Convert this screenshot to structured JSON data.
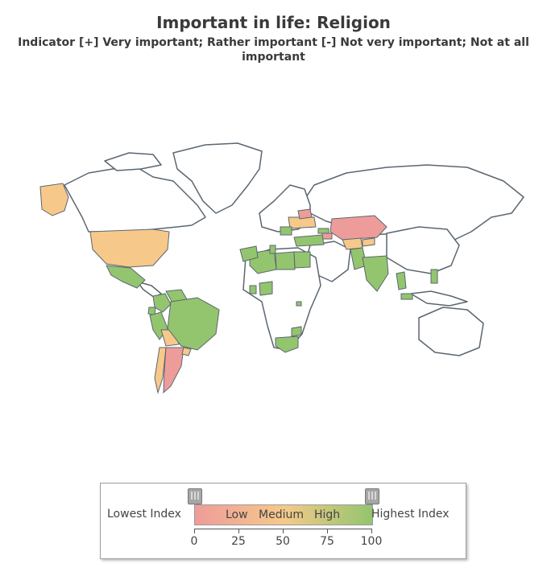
{
  "title": "Important in life: Religion",
  "subtitle": "Indicator [+] Very important; Rather important [-] Not very important; Not at all important",
  "colors": {
    "low": "#ee9c9a",
    "medium": "#f6c98a",
    "high": "#93c56e",
    "no_data": "#ffffff",
    "border": "#5b6670"
  },
  "map": {
    "type": "choropleth",
    "regions": [
      {
        "name": "Alaska",
        "level": "medium"
      },
      {
        "name": "United States",
        "level": "medium"
      },
      {
        "name": "Mexico",
        "level": "high"
      },
      {
        "name": "Colombia",
        "level": "high"
      },
      {
        "name": "Venezuela",
        "level": "high"
      },
      {
        "name": "Ecuador",
        "level": "high"
      },
      {
        "name": "Peru",
        "level": "high"
      },
      {
        "name": "Bolivia",
        "level": "medium"
      },
      {
        "name": "Brazil",
        "level": "high"
      },
      {
        "name": "Chile",
        "level": "medium"
      },
      {
        "name": "Argentina",
        "level": "low"
      },
      {
        "name": "Uruguay",
        "level": "medium"
      },
      {
        "name": "Ukraine",
        "level": "medium"
      },
      {
        "name": "Romania",
        "level": "high"
      },
      {
        "name": "Belarus",
        "level": "low"
      },
      {
        "name": "Kazakhstan",
        "level": "low"
      },
      {
        "name": "Uzbekistan",
        "level": "medium"
      },
      {
        "name": "Kyrgyzstan",
        "level": "medium"
      },
      {
        "name": "Georgia",
        "level": "high"
      },
      {
        "name": "Azerbaijan",
        "level": "low"
      },
      {
        "name": "Turkey",
        "level": "high"
      },
      {
        "name": "Algeria",
        "level": "high"
      },
      {
        "name": "Libya",
        "level": "high"
      },
      {
        "name": "Egypt",
        "level": "high"
      },
      {
        "name": "Morocco",
        "level": "high"
      },
      {
        "name": "Tunisia",
        "level": "high"
      },
      {
        "name": "Pakistan",
        "level": "high"
      },
      {
        "name": "India",
        "level": "high"
      },
      {
        "name": "Thailand",
        "level": "high"
      },
      {
        "name": "Nigeria",
        "level": "high"
      },
      {
        "name": "Ghana",
        "level": "high"
      },
      {
        "name": "Rwanda",
        "level": "high"
      },
      {
        "name": "Zimbabwe",
        "level": "high"
      },
      {
        "name": "South Africa",
        "level": "high"
      },
      {
        "name": "Philippines",
        "level": "high"
      },
      {
        "name": "Malaysia",
        "level": "high"
      }
    ]
  },
  "legend": {
    "lowest_label": "Lowest Index",
    "highest_label": "Highest Index",
    "low": "Low",
    "medium": "Medium",
    "high": "High",
    "ticks": [
      "0",
      "25",
      "50",
      "75",
      "100"
    ]
  }
}
